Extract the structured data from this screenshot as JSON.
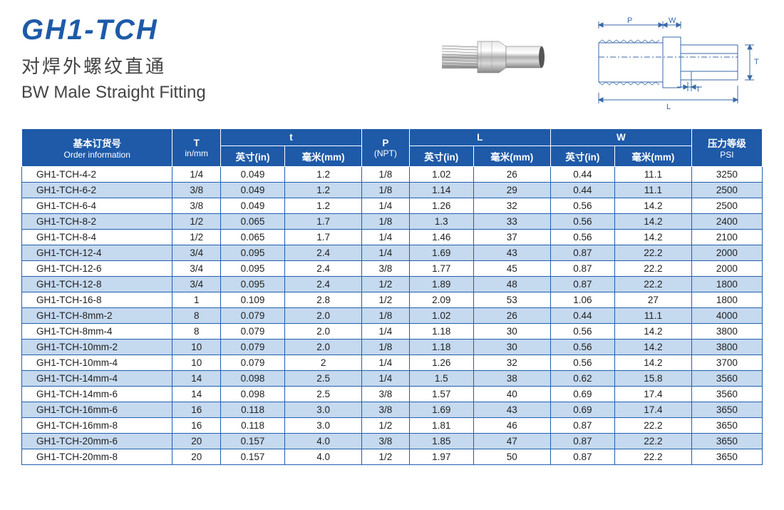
{
  "header": {
    "model": "GH1-TCH",
    "title_cn": "对焊外螺纹直通",
    "title_en": "BW Male Straight Fitting"
  },
  "diagram_labels": {
    "P": "P",
    "W": "W",
    "T": "T",
    "t": "t",
    "L": "L"
  },
  "table": {
    "headers": {
      "order_cn": "基本订货号",
      "order_en": "Order information",
      "T": "T",
      "T_unit": "in/mm",
      "t": "t",
      "P": "P",
      "P_unit": "(NPT)",
      "L": "L",
      "W": "W",
      "psi_cn": "压力等级",
      "psi_en": "PSI",
      "inch": "英寸(in)",
      "mm": "毫米(mm)"
    },
    "rows": [
      [
        "GH1-TCH-4-2",
        "1/4",
        "0.049",
        "1.2",
        "1/8",
        "1.02",
        "26",
        "0.44",
        "11.1",
        "3250"
      ],
      [
        "GH1-TCH-6-2",
        "3/8",
        "0.049",
        "1.2",
        "1/8",
        "1.14",
        "29",
        "0.44",
        "11.1",
        "2500"
      ],
      [
        "GH1-TCH-6-4",
        "3/8",
        "0.049",
        "1.2",
        "1/4",
        "1.26",
        "32",
        "0.56",
        "14.2",
        "2500"
      ],
      [
        "GH1-TCH-8-2",
        "1/2",
        "0.065",
        "1.7",
        "1/8",
        "1.3",
        "33",
        "0.56",
        "14.2",
        "2400"
      ],
      [
        "GH1-TCH-8-4",
        "1/2",
        "0.065",
        "1.7",
        "1/4",
        "1.46",
        "37",
        "0.56",
        "14.2",
        "2100"
      ],
      [
        "GH1-TCH-12-4",
        "3/4",
        "0.095",
        "2.4",
        "1/4",
        "1.69",
        "43",
        "0.87",
        "22.2",
        "2000"
      ],
      [
        "GH1-TCH-12-6",
        "3/4",
        "0.095",
        "2.4",
        "3/8",
        "1.77",
        "45",
        "0.87",
        "22.2",
        "2000"
      ],
      [
        "GH1-TCH-12-8",
        "3/4",
        "0.095",
        "2.4",
        "1/2",
        "1.89",
        "48",
        "0.87",
        "22.2",
        "1800"
      ],
      [
        "GH1-TCH-16-8",
        "1",
        "0.109",
        "2.8",
        "1/2",
        "2.09",
        "53",
        "1.06",
        "27",
        "1800"
      ],
      [
        "GH1-TCH-8mm-2",
        "8",
        "0.079",
        "2.0",
        "1/8",
        "1.02",
        "26",
        "0.44",
        "11.1",
        "4000"
      ],
      [
        "GH1-TCH-8mm-4",
        "8",
        "0.079",
        "2.0",
        "1/4",
        "1.18",
        "30",
        "0.56",
        "14.2",
        "3800"
      ],
      [
        "GH1-TCH-10mm-2",
        "10",
        "0.079",
        "2.0",
        "1/8",
        "1.18",
        "30",
        "0.56",
        "14.2",
        "3800"
      ],
      [
        "GH1-TCH-10mm-4",
        "10",
        "0.079",
        "2",
        "1/4",
        "1.26",
        "32",
        "0.56",
        "14.2",
        "3700"
      ],
      [
        "GH1-TCH-14mm-4",
        "14",
        "0.098",
        "2.5",
        "1/4",
        "1.5",
        "38",
        "0.62",
        "15.8",
        "3560"
      ],
      [
        "GH1-TCH-14mm-6",
        "14",
        "0.098",
        "2.5",
        "3/8",
        "1.57",
        "40",
        "0.69",
        "17.4",
        "3560"
      ],
      [
        "GH1-TCH-16mm-6",
        "16",
        "0.118",
        "3.0",
        "3/8",
        "1.69",
        "43",
        "0.69",
        "17.4",
        "3650"
      ],
      [
        "GH1-TCH-16mm-8",
        "16",
        "0.118",
        "3.0",
        "1/2",
        "1.81",
        "46",
        "0.87",
        "22.2",
        "3650"
      ],
      [
        "GH1-TCH-20mm-6",
        "20",
        "0.157",
        "4.0",
        "3/8",
        "1.85",
        "47",
        "0.87",
        "22.2",
        "3650"
      ],
      [
        "GH1-TCH-20mm-8",
        "20",
        "0.157",
        "4.0",
        "1/2",
        "1.97",
        "50",
        "0.87",
        "22.2",
        "3650"
      ]
    ]
  },
  "colors": {
    "header_bg": "#1e5aa8",
    "row_alt": "#c5d9ef",
    "border": "#2060b0",
    "title_blue": "#1e5aa8"
  }
}
